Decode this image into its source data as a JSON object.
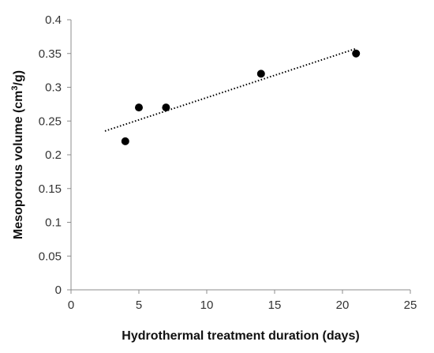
{
  "chart_data": {
    "type": "scatter",
    "xlabel": "Hydrothermal treatment duration (days)",
    "ylabel": {
      "prefix": "Mesoporous volume (cm",
      "superscript": "3",
      "suffix": "/g)"
    },
    "xlim": [
      0,
      25
    ],
    "ylim": [
      0,
      0.4
    ],
    "x_ticks": [
      "0",
      "5",
      "10",
      "15",
      "20",
      "25"
    ],
    "y_ticks": [
      "0",
      "0.05",
      "0.1",
      "0.15",
      "0.2",
      "0.25",
      "0.3",
      "0.35",
      "0.4"
    ],
    "grid": false,
    "legend": "none",
    "series": [
      {
        "points": [
          {
            "x": 4,
            "y": 0.22
          },
          {
            "x": 5,
            "y": 0.27
          },
          {
            "x": 7,
            "y": 0.27
          },
          {
            "x": 14,
            "y": 0.32
          },
          {
            "x": 21,
            "y": 0.35
          }
        ],
        "color": "#000000",
        "trendline": {
          "type": "linear",
          "style": "dotted",
          "x_range": [
            2.5,
            21
          ]
        }
      }
    ]
  }
}
